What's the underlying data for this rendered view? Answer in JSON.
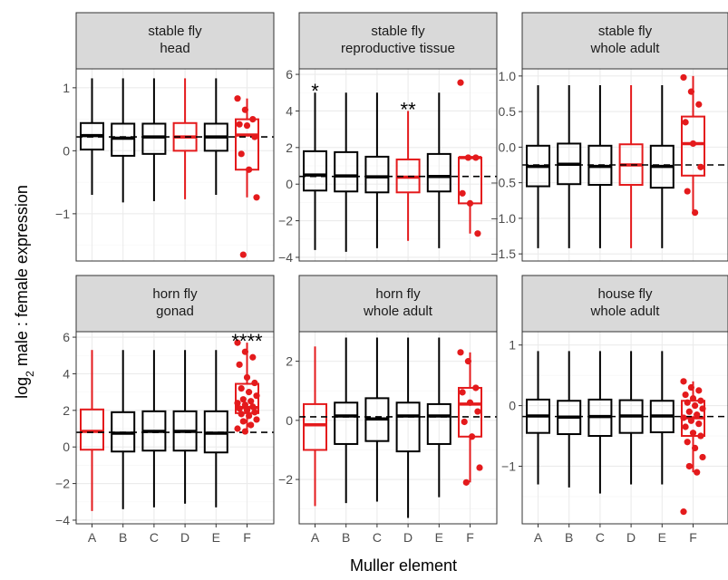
{
  "chart_data": {
    "type": "boxplot",
    "x_label": "Muller element",
    "y_label": {
      "prefix": "log",
      "subscript": "2",
      "suffix": " male : female expression"
    },
    "categories": [
      "A",
      "B",
      "C",
      "D",
      "E",
      "F"
    ],
    "colors": {
      "normal": "#000000",
      "highlight": "#e41a1c",
      "dashed_line": "#000000"
    },
    "panels": [
      {
        "strip": [
          "stable fly",
          "head"
        ],
        "ylim": [
          -1.75,
          1.3
        ],
        "y_ticks": [
          -1,
          0,
          1
        ],
        "y_tick_labels": [
          "−1",
          "0",
          "1"
        ],
        "y_minor": [
          -1.5,
          -0.5,
          0.5
        ],
        "dashed_median": 0.22,
        "highlight": [
          "D",
          "F"
        ],
        "boxes": [
          {
            "cat": "A",
            "whisker_low": -0.7,
            "q1": 0.02,
            "median": 0.24,
            "q3": 0.44,
            "whisker_high": 1.15
          },
          {
            "cat": "B",
            "whisker_low": -0.82,
            "q1": -0.08,
            "median": 0.2,
            "q3": 0.43,
            "whisker_high": 1.15
          },
          {
            "cat": "C",
            "whisker_low": -0.8,
            "q1": -0.05,
            "median": 0.22,
            "q3": 0.43,
            "whisker_high": 1.15
          },
          {
            "cat": "D",
            "whisker_low": -0.77,
            "q1": 0.0,
            "median": 0.22,
            "q3": 0.44,
            "whisker_high": 1.15
          },
          {
            "cat": "E",
            "whisker_low": -0.7,
            "q1": 0.0,
            "median": 0.22,
            "q3": 0.43,
            "whisker_high": 1.15
          },
          {
            "cat": "F",
            "whisker_low": -0.74,
            "q1": -0.3,
            "median": 0.25,
            "q3": 0.5,
            "whisker_high": 0.83
          }
        ],
        "points": {
          "F": [
            0.83,
            0.65,
            0.5,
            0.42,
            0.4,
            0.22,
            -0.05,
            -0.3,
            -0.74,
            -1.65
          ]
        },
        "significance": []
      },
      {
        "strip": [
          "stable fly",
          "reproductive tissue"
        ],
        "ylim": [
          -4.2,
          6.3
        ],
        "y_ticks": [
          -4,
          -2,
          0,
          2,
          4,
          6
        ],
        "y_tick_labels": [
          "−4",
          "−2",
          "0",
          "2",
          "4",
          "6"
        ],
        "y_minor": [
          -3,
          -1,
          1,
          3,
          5
        ],
        "dashed_median": 0.42,
        "highlight": [
          "D",
          "F"
        ],
        "boxes": [
          {
            "cat": "A",
            "whisker_low": -3.6,
            "q1": -0.35,
            "median": 0.5,
            "q3": 1.8,
            "whisker_high": 5.0
          },
          {
            "cat": "B",
            "whisker_low": -3.7,
            "q1": -0.4,
            "median": 0.45,
            "q3": 1.75,
            "whisker_high": 5.0
          },
          {
            "cat": "C",
            "whisker_low": -3.5,
            "q1": -0.45,
            "median": 0.4,
            "q3": 1.5,
            "whisker_high": 5.0
          },
          {
            "cat": "D",
            "whisker_low": -3.1,
            "q1": -0.45,
            "median": 0.38,
            "q3": 1.35,
            "whisker_high": 4.0
          },
          {
            "cat": "E",
            "whisker_low": -3.5,
            "q1": -0.4,
            "median": 0.42,
            "q3": 1.65,
            "whisker_high": 5.0
          },
          {
            "cat": "F",
            "whisker_low": -2.7,
            "q1": -1.05,
            "median": 1.45,
            "q3": 1.45,
            "whisker_high": 1.45
          }
        ],
        "points": {
          "F": [
            5.55,
            1.45,
            1.45,
            -0.5,
            -1.05,
            -2.7
          ]
        },
        "significance": [
          {
            "cat": "A",
            "label": "*"
          },
          {
            "cat": "D",
            "label": "**"
          }
        ]
      },
      {
        "strip": [
          "stable fly",
          "whole adult"
        ],
        "ylim": [
          -1.6,
          1.1
        ],
        "y_ticks": [
          -1.5,
          -1.0,
          -0.5,
          0.0,
          0.5,
          1.0
        ],
        "y_tick_labels": [
          "−1.5",
          "−1.0",
          "−0.5",
          "0.0",
          "0.5",
          "1.0"
        ],
        "y_minor": [],
        "dashed_median": -0.25,
        "highlight": [
          "D",
          "F"
        ],
        "boxes": [
          {
            "cat": "A",
            "whisker_low": -1.42,
            "q1": -0.55,
            "median": -0.27,
            "q3": 0.02,
            "whisker_high": 0.87
          },
          {
            "cat": "B",
            "whisker_low": -1.42,
            "q1": -0.52,
            "median": -0.24,
            "q3": 0.05,
            "whisker_high": 0.87
          },
          {
            "cat": "C",
            "whisker_low": -1.42,
            "q1": -0.53,
            "median": -0.27,
            "q3": 0.02,
            "whisker_high": 0.87
          },
          {
            "cat": "D",
            "whisker_low": -1.42,
            "q1": -0.53,
            "median": -0.25,
            "q3": 0.04,
            "whisker_high": 0.87
          },
          {
            "cat": "E",
            "whisker_low": -1.42,
            "q1": -0.57,
            "median": -0.27,
            "q3": 0.02,
            "whisker_high": 0.87
          },
          {
            "cat": "F",
            "whisker_low": -0.92,
            "q1": -0.4,
            "median": 0.05,
            "q3": 0.43,
            "whisker_high": 1.0
          }
        ],
        "points": {
          "F": [
            0.98,
            0.78,
            0.6,
            0.35,
            0.05,
            -0.28,
            -0.62,
            -0.92
          ]
        },
        "significance": []
      },
      {
        "strip": [
          "horn fly",
          "gonad"
        ],
        "ylim": [
          -4.2,
          6.3
        ],
        "y_ticks": [
          -4,
          -2,
          0,
          2,
          4,
          6
        ],
        "y_tick_labels": [
          "−4",
          "−2",
          "0",
          "2",
          "4",
          "6"
        ],
        "y_minor": [
          -3,
          -1,
          1,
          3,
          5
        ],
        "dashed_median": 0.8,
        "highlight": [
          "A",
          "F"
        ],
        "boxes": [
          {
            "cat": "A",
            "whisker_low": -3.5,
            "q1": -0.15,
            "median": 0.85,
            "q3": 2.05,
            "whisker_high": 5.3
          },
          {
            "cat": "B",
            "whisker_low": -3.4,
            "q1": -0.25,
            "median": 0.75,
            "q3": 1.9,
            "whisker_high": 5.3
          },
          {
            "cat": "C",
            "whisker_low": -3.3,
            "q1": -0.2,
            "median": 0.85,
            "q3": 1.95,
            "whisker_high": 5.3
          },
          {
            "cat": "D",
            "whisker_low": -3.1,
            "q1": -0.2,
            "median": 0.85,
            "q3": 1.95,
            "whisker_high": 5.3
          },
          {
            "cat": "E",
            "whisker_low": -3.3,
            "q1": -0.3,
            "median": 0.75,
            "q3": 1.95,
            "whisker_high": 5.3
          },
          {
            "cat": "F",
            "whisker_low": 0.75,
            "q1": 1.85,
            "median": 2.15,
            "q3": 3.45,
            "whisker_high": 5.7
          }
        ],
        "points": {
          "F": [
            5.7,
            5.2,
            4.9,
            4.5,
            3.8,
            3.5,
            3.2,
            3.0,
            2.8,
            2.6,
            2.5,
            2.4,
            2.3,
            2.2,
            2.1,
            2.0,
            1.9,
            1.8,
            1.7,
            1.5,
            1.4,
            1.2,
            1.0,
            0.85
          ]
        },
        "significance": [
          {
            "cat": "F",
            "label": "****"
          }
        ]
      },
      {
        "strip": [
          "horn fly",
          "whole adult"
        ],
        "ylim": [
          -3.5,
          3.0
        ],
        "y_ticks": [
          -2,
          0,
          2
        ],
        "y_tick_labels": [
          "−2",
          "0",
          "2"
        ],
        "y_minor": [
          -3,
          -1,
          1
        ],
        "dashed_median": 0.12,
        "highlight": [
          "A",
          "F"
        ],
        "boxes": [
          {
            "cat": "A",
            "whisker_low": -2.9,
            "q1": -1.0,
            "median": -0.15,
            "q3": 0.55,
            "whisker_high": 2.5
          },
          {
            "cat": "B",
            "whisker_low": -2.8,
            "q1": -0.8,
            "median": 0.15,
            "q3": 0.6,
            "whisker_high": 2.8
          },
          {
            "cat": "C",
            "whisker_low": -2.75,
            "q1": -0.7,
            "median": 0.05,
            "q3": 0.75,
            "whisker_high": 2.8
          },
          {
            "cat": "D",
            "whisker_low": -3.3,
            "q1": -1.05,
            "median": 0.15,
            "q3": 0.6,
            "whisker_high": 2.8
          },
          {
            "cat": "E",
            "whisker_low": -2.6,
            "q1": -0.8,
            "median": 0.15,
            "q3": 0.55,
            "whisker_high": 2.8
          },
          {
            "cat": "F",
            "whisker_low": -2.1,
            "q1": -0.55,
            "median": 0.55,
            "q3": 1.1,
            "whisker_high": 2.3
          }
        ],
        "points": {
          "F": [
            2.3,
            2.0,
            1.1,
            0.95,
            0.6,
            0.3,
            -0.05,
            -0.55,
            -1.6,
            -2.1
          ]
        },
        "significance": []
      },
      {
        "strip": [
          "house fly",
          "whole adult"
        ],
        "ylim": [
          -1.95,
          1.22
        ],
        "y_ticks": [
          -1,
          0,
          1
        ],
        "y_tick_labels": [
          "−1",
          "0",
          "1"
        ],
        "y_minor": [
          -1.5,
          -0.5,
          0.5
        ],
        "dashed_median": -0.18,
        "highlight": [
          "F"
        ],
        "boxes": [
          {
            "cat": "A",
            "whisker_low": -1.3,
            "q1": -0.45,
            "median": -0.17,
            "q3": 0.1,
            "whisker_high": 0.9
          },
          {
            "cat": "B",
            "whisker_low": -1.35,
            "q1": -0.47,
            "median": -0.19,
            "q3": 0.08,
            "whisker_high": 0.9
          },
          {
            "cat": "C",
            "whisker_low": -1.45,
            "q1": -0.5,
            "median": -0.18,
            "q3": 0.1,
            "whisker_high": 0.9
          },
          {
            "cat": "D",
            "whisker_low": -1.3,
            "q1": -0.45,
            "median": -0.17,
            "q3": 0.09,
            "whisker_high": 0.9
          },
          {
            "cat": "E",
            "whisker_low": -1.3,
            "q1": -0.44,
            "median": -0.17,
            "q3": 0.08,
            "whisker_high": 0.9
          },
          {
            "cat": "F",
            "whisker_low": -1.1,
            "q1": -0.5,
            "median": -0.2,
            "q3": 0.08,
            "whisker_high": 0.4
          }
        ],
        "points": {
          "F": [
            0.4,
            0.3,
            0.25,
            0.18,
            0.12,
            0.08,
            0.05,
            0.0,
            -0.05,
            -0.1,
            -0.15,
            -0.2,
            -0.25,
            -0.3,
            -0.35,
            -0.45,
            -0.5,
            -0.6,
            -0.7,
            -0.85,
            -1.0,
            -1.1,
            -1.75
          ]
        },
        "significance": []
      }
    ]
  }
}
